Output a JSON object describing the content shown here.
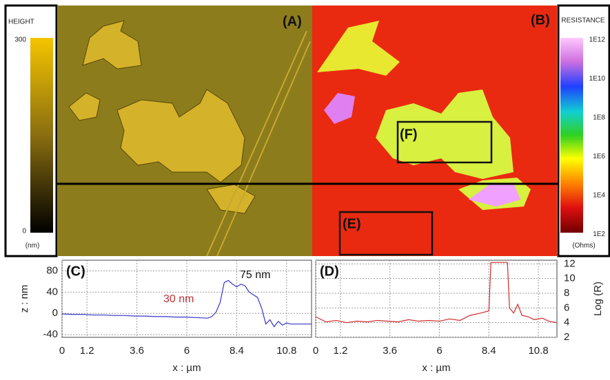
{
  "height_colorbar": {
    "title": "HEIGHT",
    "top": "300",
    "bottom": "0",
    "unit": "(nm)"
  },
  "resistance_colorbar": {
    "title": "RESISTANCE",
    "labels": [
      "1E12",
      "1E10",
      "1E8",
      "1E6",
      "1E4",
      "1E2"
    ],
    "unit": "(Ohms)"
  },
  "panels": {
    "a": "(A)",
    "b": "(B)",
    "e": "(E)",
    "f": "(F)"
  },
  "chart_data": [
    {
      "type": "line",
      "title": "(C)",
      "y_label": "z : nm",
      "x_label": "x : µm",
      "x": [
        0,
        0.5,
        1,
        1.5,
        2,
        2.5,
        3,
        3.5,
        4,
        4.5,
        5,
        5.5,
        6,
        6.5,
        7,
        7.2,
        7.4,
        7.6,
        7.8,
        8,
        8.2,
        8.4,
        8.6,
        8.8,
        9,
        9.2,
        9.4,
        9.6,
        9.8,
        10,
        10.2,
        10.4,
        10.6,
        10.8,
        11,
        11.5,
        12
      ],
      "series": [
        {
          "name": "z",
          "color": "#3535c8",
          "values": [
            -1,
            -2,
            -2,
            -3,
            -3,
            -4,
            -4,
            -5,
            -5,
            -6,
            -6,
            -7,
            -7,
            -8,
            -9,
            -6,
            2,
            20,
            58,
            62,
            55,
            50,
            55,
            52,
            40,
            35,
            30,
            10,
            -20,
            -12,
            -25,
            -15,
            -22,
            -18,
            -20,
            -20,
            -20
          ]
        }
      ],
      "xlim": [
        0,
        12
      ],
      "ylim": [
        -45,
        100
      ],
      "xticks": [
        0,
        1.2,
        3.6,
        6,
        8.4,
        10.8
      ],
      "yticks": [
        80,
        40,
        0,
        -40
      ],
      "grid": true,
      "y_axis_side": "left",
      "annotations": [
        {
          "text": "30 nm",
          "color": "#c0303a"
        },
        {
          "text": "75 nm",
          "color": "#111111"
        }
      ]
    },
    {
      "type": "line",
      "title": "(D)",
      "y_label": "Log (R)",
      "x_label": "x : µm",
      "x": [
        0,
        0.5,
        1,
        1.5,
        2,
        2.5,
        3,
        3.5,
        4,
        4.5,
        5,
        5.5,
        6,
        6.5,
        7,
        7.5,
        8,
        8.4,
        8.5,
        8.7,
        9,
        9.3,
        9.4,
        9.6,
        9.8,
        10,
        10.3,
        10.6,
        11,
        11.3,
        11.7
      ],
      "series": [
        {
          "name": "Log (R)",
          "color": "#d02828",
          "values": [
            4.8,
            4.1,
            4.3,
            4.0,
            4.2,
            4.1,
            4.3,
            4.2,
            4.1,
            4.4,
            4.2,
            4.3,
            4.2,
            4.5,
            4.3,
            5.0,
            5.3,
            5.6,
            12.2,
            12.2,
            12.2,
            12.2,
            6,
            5.3,
            6.5,
            5,
            4.8,
            4.4,
            4.6,
            4.2,
            4.0
          ]
        }
      ],
      "xlim": [
        0,
        11.7
      ],
      "ylim": [
        2,
        12.5
      ],
      "xticks": [
        0,
        1.2,
        3.6,
        6,
        8.4,
        10.8
      ],
      "yticks": [
        2,
        4,
        6,
        8,
        10,
        12
      ],
      "grid": true,
      "y_axis_side": "right"
    }
  ]
}
